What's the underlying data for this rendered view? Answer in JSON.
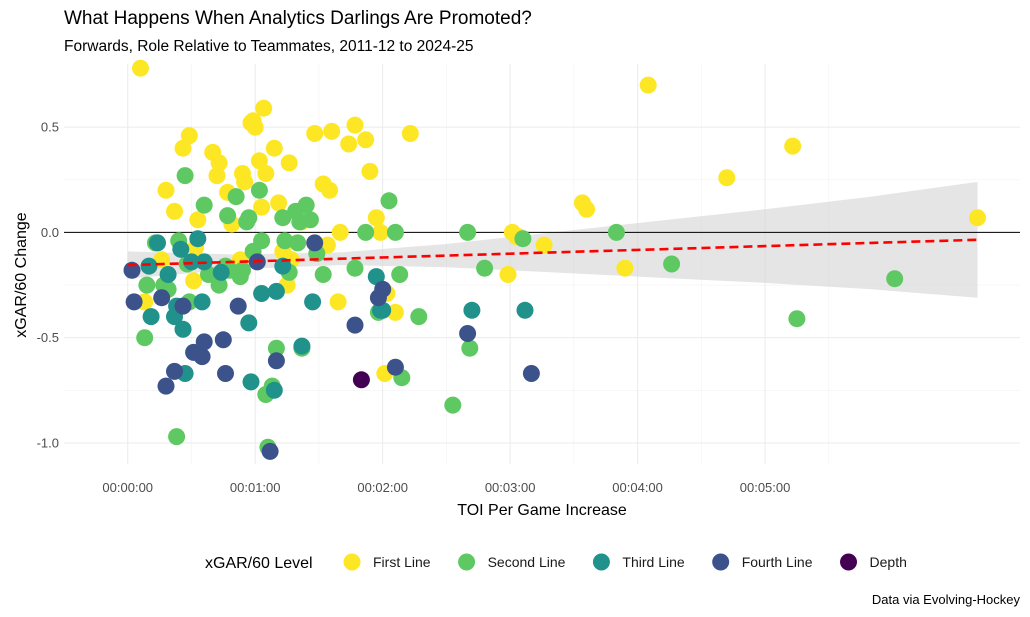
{
  "title": "What Happens When Analytics Darlings Are Promoted?",
  "subtitle": "Forwards, Role Relative to Teammates, 2011-12 to 2024-25",
  "caption": "Data via Evolving-Hockey",
  "chart_data": {
    "type": "scatter",
    "xlabel": "TOI Per Game Increase",
    "ylabel": "xGAR/60 Change",
    "x_unit": "seconds",
    "xlim": [
      -30,
      420
    ],
    "ylim": [
      -1.1,
      0.8
    ],
    "x_ticks": [
      {
        "value": 0,
        "label": "00:00:00"
      },
      {
        "value": 60,
        "label": "00:01:00"
      },
      {
        "value": 120,
        "label": "00:02:00"
      },
      {
        "value": 180,
        "label": "00:03:00"
      },
      {
        "value": 240,
        "label": "00:04:00"
      },
      {
        "value": 300,
        "label": "00:05:00"
      }
    ],
    "y_ticks": [
      {
        "value": -1.0,
        "label": "-1.0"
      },
      {
        "value": -0.5,
        "label": "-0.5"
      },
      {
        "value": 0.0,
        "label": "0.0"
      },
      {
        "value": 0.5,
        "label": "0.5"
      }
    ],
    "grid": true,
    "reference_line_y": 0,
    "legend_title": "xGAR/60 Level",
    "legend_position": "bottom",
    "series": [
      {
        "name": "First Line",
        "color": "#FDE725",
        "points": [
          [
            6,
            0.78
          ],
          [
            8,
            -0.33
          ],
          [
            16,
            -0.13
          ],
          [
            18,
            0.2
          ],
          [
            22,
            0.1
          ],
          [
            26,
            0.4
          ],
          [
            29,
            0.46
          ],
          [
            31,
            -0.23
          ],
          [
            32,
            -0.07
          ],
          [
            33,
            0.06
          ],
          [
            40,
            0.38
          ],
          [
            42,
            0.27
          ],
          [
            43,
            0.33
          ],
          [
            47,
            0.19
          ],
          [
            49,
            0.04
          ],
          [
            53,
            -0.13
          ],
          [
            54,
            0.28
          ],
          [
            55,
            0.24
          ],
          [
            58,
            0.52
          ],
          [
            59,
            0.53
          ],
          [
            60,
            0.5
          ],
          [
            62,
            0.34
          ],
          [
            63,
            0.12
          ],
          [
            64,
            0.59
          ],
          [
            65,
            0.28
          ],
          [
            69,
            0.4
          ],
          [
            71,
            0.14
          ],
          [
            73,
            -0.09
          ],
          [
            75,
            -0.25
          ],
          [
            76,
            0.33
          ],
          [
            77,
            -0.13
          ],
          [
            80,
            0.1
          ],
          [
            82,
            0.05
          ],
          [
            88,
            0.47
          ],
          [
            92,
            0.23
          ],
          [
            94,
            -0.06
          ],
          [
            95,
            0.2
          ],
          [
            96,
            0.48
          ],
          [
            99,
            -0.33
          ],
          [
            100,
            0
          ],
          [
            104,
            0.42
          ],
          [
            107,
            0.51
          ],
          [
            112,
            0.44
          ],
          [
            114,
            0.29
          ],
          [
            117,
            0.07
          ],
          [
            119,
            0
          ],
          [
            121,
            -0.67
          ],
          [
            122,
            -0.29
          ],
          [
            126,
            -0.38
          ],
          [
            133,
            0.47
          ],
          [
            179,
            -0.2
          ],
          [
            181,
            0
          ],
          [
            183,
            -0.02
          ],
          [
            184,
            -0.02
          ],
          [
            196,
            -0.06
          ],
          [
            214,
            0.14
          ],
          [
            216,
            0.11
          ],
          [
            234,
            -0.17
          ],
          [
            245,
            0.7
          ],
          [
            282,
            0.26
          ],
          [
            313,
            0.41
          ],
          [
            400,
            0.07
          ]
        ]
      },
      {
        "name": "Second Line",
        "color": "#5EC962",
        "points": [
          [
            8,
            -0.5
          ],
          [
            9,
            -0.25
          ],
          [
            13,
            -0.05
          ],
          [
            17,
            -0.25
          ],
          [
            19,
            -0.27
          ],
          [
            23,
            -0.97
          ],
          [
            24,
            -0.04
          ],
          [
            27,
            0.27
          ],
          [
            28,
            -0.15
          ],
          [
            29,
            -0.33
          ],
          [
            36,
            0.13
          ],
          [
            38,
            -0.2
          ],
          [
            43,
            -0.25
          ],
          [
            46,
            -0.16
          ],
          [
            47,
            0.08
          ],
          [
            48,
            -0.18
          ],
          [
            51,
            0.17
          ],
          [
            53,
            -0.21
          ],
          [
            54,
            -0.18
          ],
          [
            56,
            0.05
          ],
          [
            57,
            0.07
          ],
          [
            59,
            -0.09
          ],
          [
            62,
            0.2
          ],
          [
            63,
            -0.04
          ],
          [
            65,
            -0.77
          ],
          [
            66,
            -1.02
          ],
          [
            68,
            -0.73
          ],
          [
            70,
            -0.55
          ],
          [
            73,
            0.07
          ],
          [
            74,
            -0.04
          ],
          [
            76,
            -0.19
          ],
          [
            79,
            0.1
          ],
          [
            80,
            -0.05
          ],
          [
            81,
            0.05
          ],
          [
            82,
            -0.55
          ],
          [
            84,
            0.13
          ],
          [
            86,
            0.06
          ],
          [
            89,
            -0.1
          ],
          [
            92,
            -0.2
          ],
          [
            107,
            -0.17
          ],
          [
            112,
            0
          ],
          [
            118,
            -0.38
          ],
          [
            123,
            0.15
          ],
          [
            126,
            0
          ],
          [
            128,
            -0.2
          ],
          [
            129,
            -0.69
          ],
          [
            137,
            -0.4
          ],
          [
            153,
            -0.82
          ],
          [
            160,
            0
          ],
          [
            161,
            -0.55
          ],
          [
            168,
            -0.17
          ],
          [
            186,
            -0.03
          ],
          [
            230,
            0
          ],
          [
            256,
            -0.15
          ],
          [
            315,
            -0.41
          ],
          [
            361,
            -0.22
          ]
        ]
      },
      {
        "name": "Third Line",
        "color": "#21918C",
        "points": [
          [
            10,
            -0.16
          ],
          [
            11,
            -0.4
          ],
          [
            14,
            -0.05
          ],
          [
            19,
            -0.2
          ],
          [
            22,
            -0.4
          ],
          [
            23,
            -0.35
          ],
          [
            25,
            -0.08
          ],
          [
            26,
            -0.46
          ],
          [
            27,
            -0.67
          ],
          [
            30,
            -0.14
          ],
          [
            33,
            -0.03
          ],
          [
            35,
            -0.33
          ],
          [
            36,
            -0.14
          ],
          [
            44,
            -0.19
          ],
          [
            57,
            -0.43
          ],
          [
            58,
            -0.71
          ],
          [
            63,
            -0.29
          ],
          [
            69,
            -0.75
          ],
          [
            70,
            -0.28
          ],
          [
            73,
            -0.16
          ],
          [
            82,
            -0.54
          ],
          [
            87,
            -0.33
          ],
          [
            117,
            -0.21
          ],
          [
            119,
            -0.37
          ],
          [
            120,
            -0.37
          ],
          [
            162,
            -0.37
          ],
          [
            187,
            -0.37
          ]
        ]
      },
      {
        "name": "Fourth Line",
        "color": "#3B528B",
        "points": [
          [
            2,
            -0.18
          ],
          [
            3,
            -0.33
          ],
          [
            16,
            -0.31
          ],
          [
            18,
            -0.73
          ],
          [
            22,
            -0.66
          ],
          [
            26,
            -0.35
          ],
          [
            31,
            -0.57
          ],
          [
            35,
            -0.59
          ],
          [
            36,
            -0.52
          ],
          [
            45,
            -0.51
          ],
          [
            46,
            -0.67
          ],
          [
            52,
            -0.35
          ],
          [
            61,
            -0.14
          ],
          [
            67,
            -1.04
          ],
          [
            70,
            -0.61
          ],
          [
            88,
            -0.05
          ],
          [
            107,
            -0.44
          ],
          [
            118,
            -0.31
          ],
          [
            120,
            -0.27
          ],
          [
            126,
            -0.64
          ],
          [
            160,
            -0.48
          ],
          [
            190,
            -0.67
          ]
        ]
      },
      {
        "name": "Depth",
        "color": "#440154",
        "points": [
          [
            110,
            -0.7
          ]
        ]
      }
    ],
    "smooth": {
      "type": "lm",
      "line_color": "#FF0000",
      "band_color": "#D3D3D3",
      "x": [
        0,
        50,
        100,
        150,
        200,
        250,
        300,
        350,
        400
      ],
      "y": [
        -0.155,
        -0.14,
        -0.125,
        -0.11,
        -0.095,
        -0.08,
        -0.065,
        -0.05,
        -0.035
      ],
      "lower": [
        -0.22,
        -0.175,
        -0.155,
        -0.165,
        -0.19,
        -0.215,
        -0.24,
        -0.27,
        -0.31
      ],
      "upper": [
        -0.09,
        -0.105,
        -0.095,
        -0.055,
        0.0,
        0.055,
        0.11,
        0.17,
        0.24
      ]
    }
  }
}
